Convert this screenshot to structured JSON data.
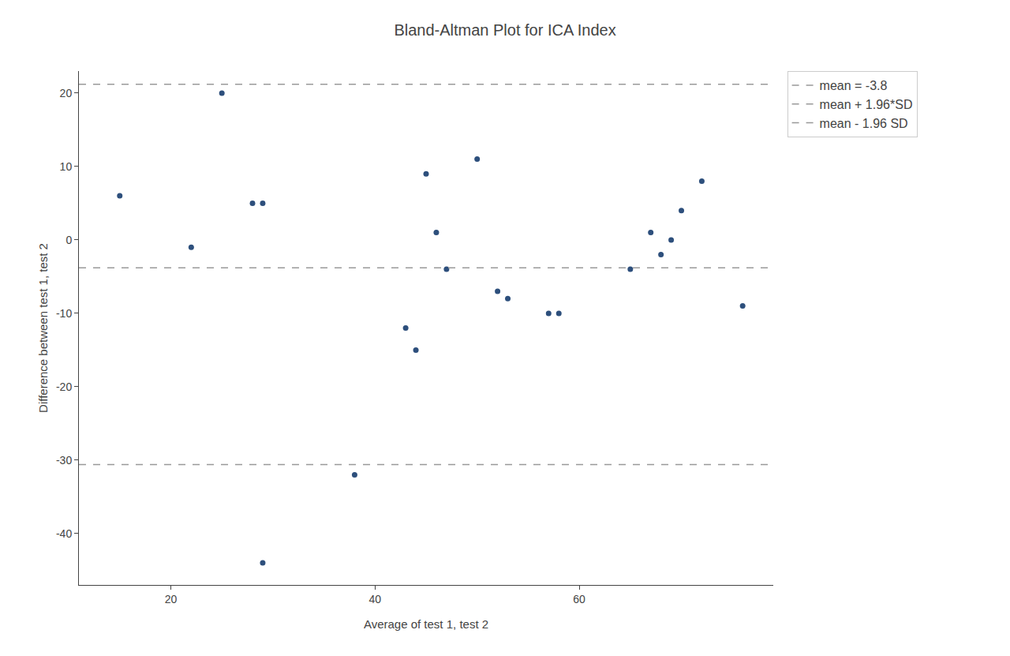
{
  "chart_data": {
    "type": "scatter",
    "title": "Bland-Altman Plot for ICA Index",
    "x_label": "Average of test 1, test 2",
    "y_label": "Difference between test 1, test 2",
    "x": [
      15,
      22,
      25,
      28,
      29,
      29,
      38,
      43,
      44,
      45,
      46,
      47,
      50,
      52,
      53,
      57,
      58,
      65,
      67,
      68,
      69,
      70,
      72,
      76
    ],
    "values": [
      6,
      -1,
      20,
      5,
      5,
      -44,
      -32,
      -12,
      -15,
      9,
      1,
      -4,
      11,
      -7,
      -8,
      -10,
      -10,
      -4,
      1,
      -2,
      0,
      4,
      8,
      -9
    ],
    "color": "#2d4f7c",
    "marker": "circle",
    "reference_lines": [
      {
        "name": "mean = -3.8",
        "value": -3.8,
        "color": "#999999",
        "line_style": "dashed"
      },
      {
        "name": "mean + 1.96*SD",
        "value": 21.2,
        "color": "#999999",
        "line_style": "dashed"
      },
      {
        "name": "mean - 1.96 SD",
        "value": -30.6,
        "color": "#999999",
        "line_style": "dashed"
      }
    ],
    "xlim": [
      11,
      79
    ],
    "ylim": [
      -47,
      23
    ],
    "xticks": [
      20,
      40,
      60
    ],
    "yticks": [
      -40,
      -30,
      -20,
      -10,
      0,
      10,
      20
    ],
    "grid": false,
    "legend": "right"
  }
}
